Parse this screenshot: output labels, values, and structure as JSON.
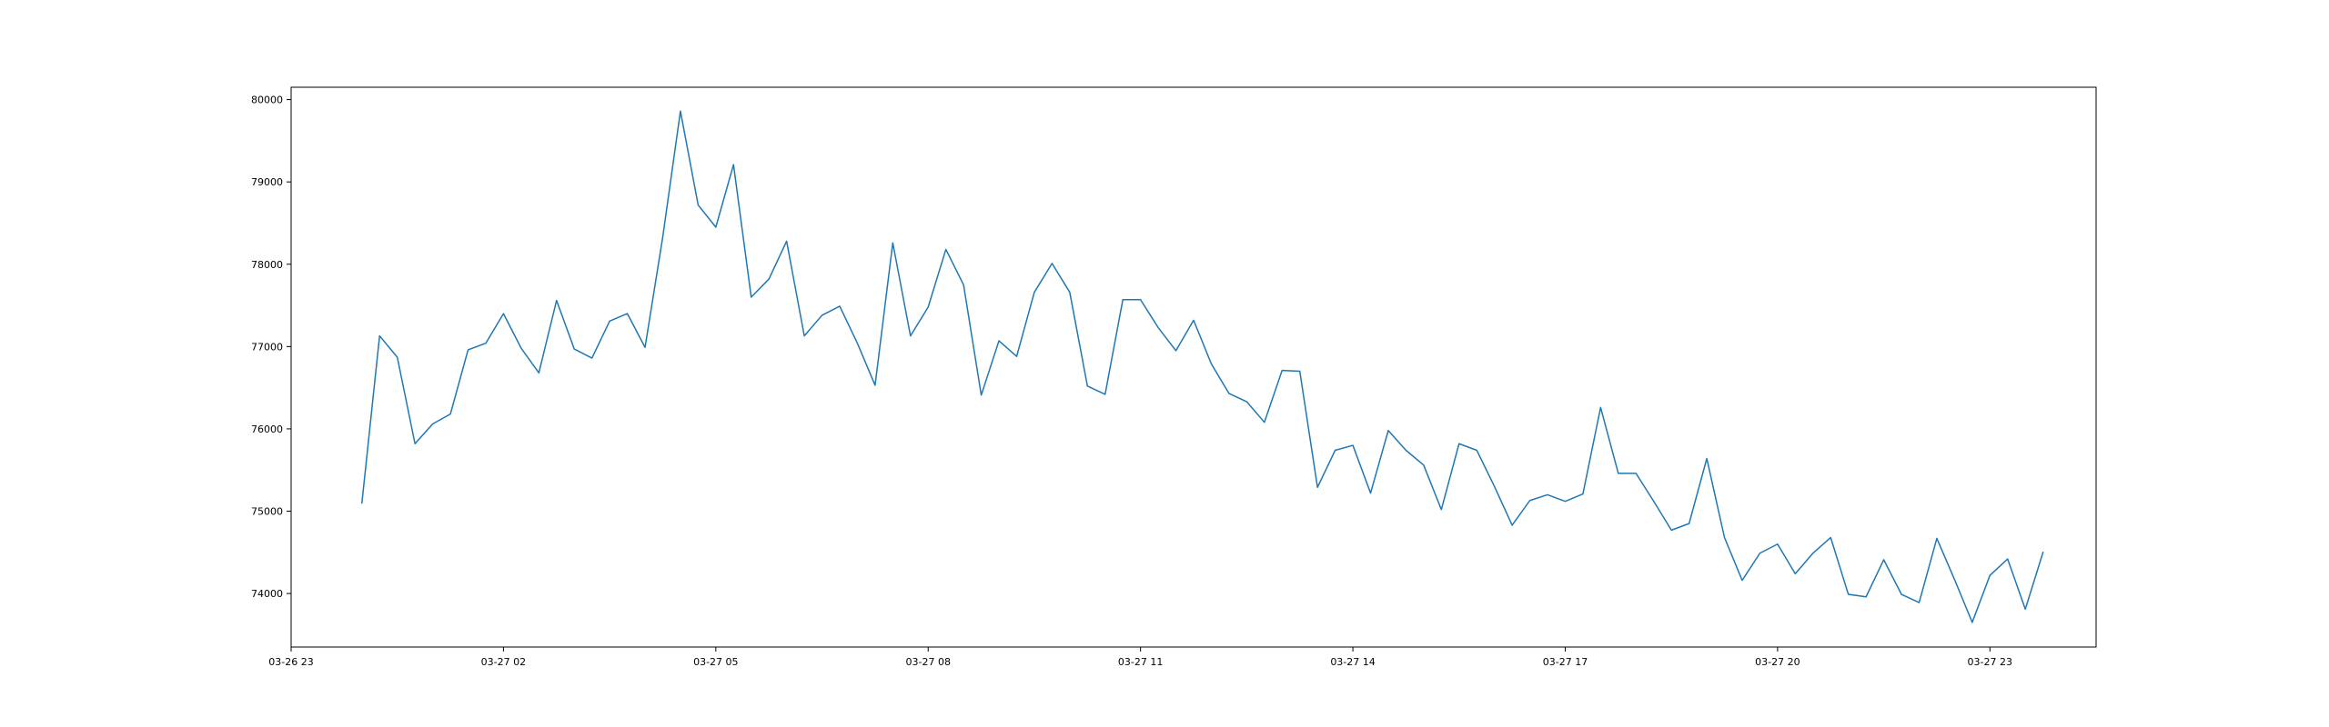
{
  "chart_data": {
    "type": "line",
    "title": "",
    "xlabel": "",
    "ylabel": "",
    "grid": false,
    "line_color": "#1f77b4",
    "x_start": "03-26 23:00",
    "x_end": "03-28 00:30",
    "ylim": [
      73350,
      80150
    ],
    "x_ticks": [
      "03-26 23",
      "03-27 02",
      "03-27 05",
      "03-27 08",
      "03-27 11",
      "03-27 14",
      "03-27 17",
      "03-27 20",
      "03-27 23"
    ],
    "y_ticks": [
      74000,
      75000,
      76000,
      77000,
      78000,
      79000,
      80000
    ],
    "y_tick_labels": [
      "74000",
      "75000",
      "76000",
      "77000",
      "78000",
      "79000",
      "80000"
    ],
    "series": [
      {
        "x": [
          "03-27 00:00",
          "03-27 00:15",
          "03-27 00:30",
          "03-27 00:45",
          "03-27 01:00",
          "03-27 01:15",
          "03-27 01:30",
          "03-27 01:45",
          "03-27 02:00",
          "03-27 02:15",
          "03-27 02:30",
          "03-27 02:45",
          "03-27 03:00",
          "03-27 03:15",
          "03-27 03:30",
          "03-27 03:45",
          "03-27 04:00",
          "03-27 04:15",
          "03-27 04:30",
          "03-27 04:45",
          "03-27 05:00",
          "03-27 05:15",
          "03-27 05:30",
          "03-27 05:45",
          "03-27 06:00",
          "03-27 06:15",
          "03-27 06:30",
          "03-27 06:45",
          "03-27 07:00",
          "03-27 07:15",
          "03-27 07:30",
          "03-27 07:45",
          "03-27 08:00",
          "03-27 08:15",
          "03-27 08:30",
          "03-27 08:45",
          "03-27 09:00",
          "03-27 09:15",
          "03-27 09:30",
          "03-27 09:45",
          "03-27 10:00",
          "03-27 10:15",
          "03-27 10:30",
          "03-27 10:45",
          "03-27 11:00",
          "03-27 11:15",
          "03-27 11:30",
          "03-27 11:45",
          "03-27 12:00",
          "03-27 12:15",
          "03-27 12:30",
          "03-27 12:45",
          "03-27 13:00",
          "03-27 13:15",
          "03-27 13:30",
          "03-27 13:45",
          "03-27 14:00",
          "03-27 14:15",
          "03-27 14:30",
          "03-27 14:45",
          "03-27 15:00",
          "03-27 15:15",
          "03-27 15:30",
          "03-27 15:45",
          "03-27 16:00",
          "03-27 16:15",
          "03-27 16:30",
          "03-27 16:45",
          "03-27 17:00",
          "03-27 17:15",
          "03-27 17:30",
          "03-27 17:45",
          "03-27 18:00",
          "03-27 18:15",
          "03-27 18:30",
          "03-27 18:45",
          "03-27 19:00",
          "03-27 19:15",
          "03-27 19:30",
          "03-27 19:45",
          "03-27 20:00",
          "03-27 20:15",
          "03-27 20:30",
          "03-27 20:45",
          "03-27 21:00",
          "03-27 21:15",
          "03-27 21:30",
          "03-27 21:45",
          "03-27 22:00",
          "03-27 22:15",
          "03-27 22:30",
          "03-27 22:45",
          "03-27 23:00",
          "03-27 23:15",
          "03-27 23:30",
          "03-27 23:45"
        ],
        "y": [
          75100,
          77130,
          76870,
          75820,
          76060,
          76180,
          76960,
          77040,
          77400,
          76980,
          76680,
          77560,
          76970,
          76860,
          77310,
          77400,
          76990,
          78330,
          79860,
          78720,
          78450,
          79210,
          77600,
          77820,
          78280,
          77130,
          77380,
          77490,
          77040,
          76530,
          78260,
          77130,
          77480,
          78180,
          77750,
          76410,
          77070,
          76880,
          77660,
          78010,
          77660,
          76520,
          76420,
          77570,
          77570,
          77230,
          76950,
          77320,
          76790,
          76430,
          76330,
          76080,
          76710,
          76700,
          75290,
          75740,
          75800,
          75220,
          75980,
          75740,
          75560,
          75020,
          75820,
          75740,
          75300,
          74830,
          75130,
          75200,
          75120,
          75210,
          76260,
          75460,
          75460,
          75120,
          74770,
          74850,
          75640,
          74680,
          74160,
          74490,
          74600,
          74240,
          74490,
          74680,
          73990,
          73960,
          74410,
          73990,
          73890,
          74670,
          74170,
          73650,
          74220,
          74420,
          73810,
          74500
        ]
      }
    ]
  }
}
